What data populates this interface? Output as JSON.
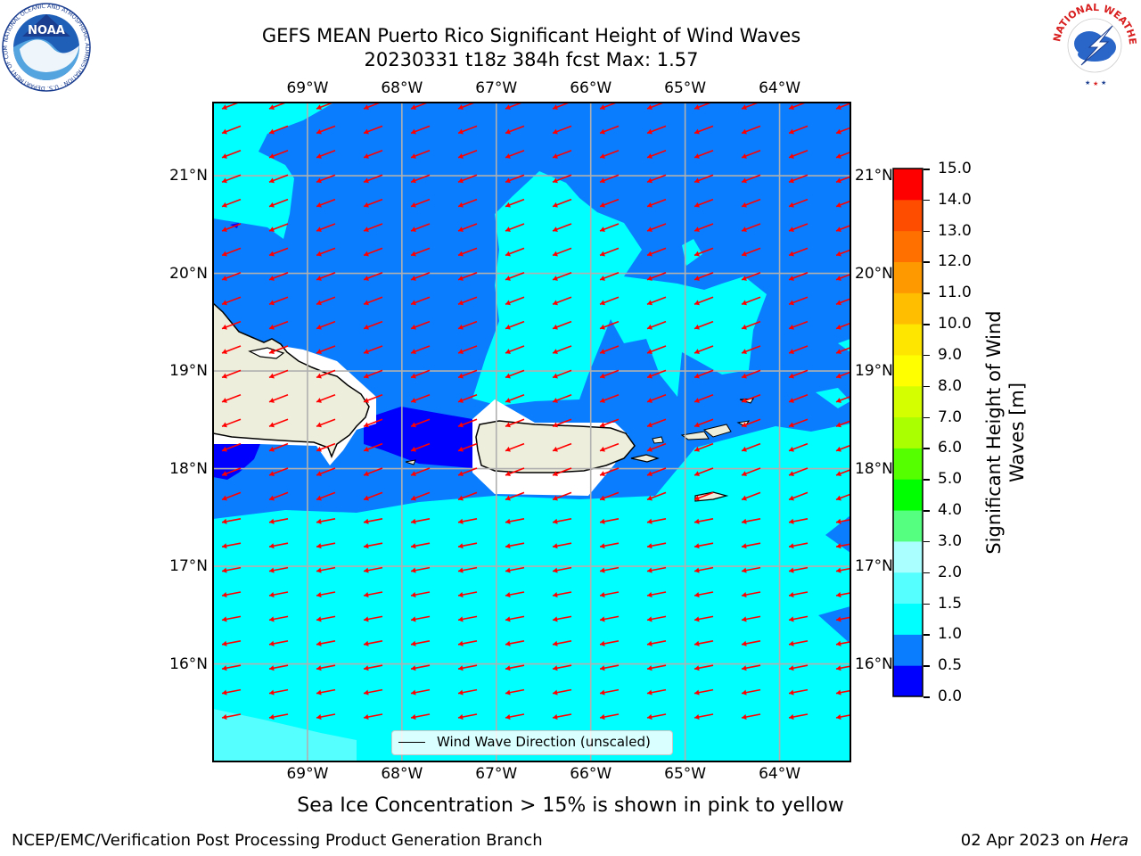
{
  "title": {
    "line1": "GEFS MEAN Puerto Rico Significant Height of Wind Waves",
    "line2": "20230331 t18z 384h fcst   Max: 1.57"
  },
  "map": {
    "lon_labels": [
      "69°W",
      "68°W",
      "67°W",
      "66°W",
      "65°W",
      "64°W"
    ],
    "lat_labels": [
      "21°N",
      "20°N",
      "19°N",
      "18°N",
      "17°N",
      "16°N"
    ],
    "lon_range": [
      -70.0,
      -63.25
    ],
    "lat_range": [
      15.0,
      21.75
    ],
    "wave_direction": "toward southwest",
    "legend_label": "Wind Wave Direction (unscaled)",
    "colors": {
      "land": "#eeeedc",
      "water_0_5_1_0": "#0a7dff",
      "water_1_0_1_5": "#00ffff",
      "water_1_5_2_0": "#55ffff",
      "water_0_0_0_5": "#0000ff",
      "arrow": "#ff0000"
    }
  },
  "colorbar": {
    "label": "Significant Height of Wind Waves [m]",
    "label_line1": "Significant Height of Wind",
    "label_line2": "Waves [m]",
    "ticks": [
      "15.0",
      "14.0",
      "13.0",
      "12.0",
      "11.0",
      "10.0",
      "9.0",
      "8.0",
      "7.0",
      "6.0",
      "5.0",
      "4.0",
      "3.0",
      "2.0",
      "1.5",
      "1.0",
      "0.5",
      "0.0"
    ],
    "colors_bottom_to_top": [
      "#0000ff",
      "#0a7dff",
      "#00ffff",
      "#55ffff",
      "#aaffff",
      "#55ff7f",
      "#00ff00",
      "#55ff00",
      "#aaff00",
      "#d4ff00",
      "#ffff00",
      "#ffe600",
      "#ffbf00",
      "#ff9900",
      "#ff7000",
      "#ff4d00",
      "#ff0000"
    ]
  },
  "subtitle": "Sea Ice Concentration > 15% is shown in pink to yellow",
  "footer": {
    "left": "NCEP/EMC/Verification Post Processing Product Generation Branch",
    "right_prefix": "02 Apr 2023 on ",
    "right_host": "Hera"
  },
  "logos": {
    "noaa": "NOAA",
    "noaa_ring": "NATIONAL OCEANIC AND ATMOSPHERIC ADMINISTRATION · U.S. DEPARTMENT OF COMMERCE",
    "nws_ring": "NATIONAL WEATHER SERVICE"
  }
}
